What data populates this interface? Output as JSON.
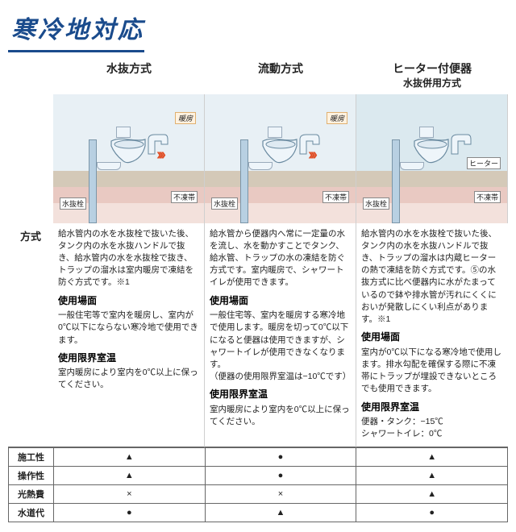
{
  "title": "寒冷地対応",
  "title_color": "#1a4b8c",
  "columns": [
    {
      "heading": "水抜方式",
      "sub": ""
    },
    {
      "heading": "流動方式",
      "sub": ""
    },
    {
      "heading": "ヒーター付便器",
      "sub": "水抜併用方式"
    }
  ],
  "side_label": "方式",
  "illustration": {
    "room_bg": "#e8f0f5",
    "room_bg_alt": "#dbe9ef",
    "floor_bg": "#d4c9b8",
    "ground_bg": "#e9c9c2",
    "soil_bg": "#f3e1dc",
    "pipe_color": "#b8d0e2",
    "bowl_stroke": "#6a8aa0",
    "bowl_fill": "#eef5fa",
    "wave_color": "#e05028",
    "label_water": "水抜栓",
    "label_frost": "不凍帯",
    "label_heat": "暖房",
    "label_heater": "ヒーター",
    "show_waves": [
      true,
      true,
      false
    ],
    "show_heaterbox": [
      false,
      false,
      true
    ],
    "room_variant": [
      0,
      0,
      1
    ]
  },
  "cursor": "",
  "descriptions": [
    {
      "body": "給水管内の水を水抜栓で抜いた後、タンク内の水を水抜ハンドルで抜き、給水管内の水を水抜栓で抜き、トラップの溜水は室内暖房で凍結を防ぐ方式です。※1",
      "scene_title": "使用場面",
      "scene": "一般住宅等で室内を暖房し、室内が0℃以下にならない寒冷地で使用できます。",
      "limit_title": "使用限界室温",
      "limit": "室内暖房により室内を0℃以上に保ってください。"
    },
    {
      "body": "給水管から便器内へ常に一定量の水を流し、水を動かすことでタンク、給水管、トラップの水の凍結を防ぐ方式です。室内暖房で、シャワートイレが使用できます。",
      "scene_title": "使用場面",
      "scene": "一般住宅等、室内を暖房する寒冷地で使用します。暖房を切って0℃以下になると便器は使用できますが、シャワートイレが使用できなくなります。\n（便器の使用限界室温は−10℃です）",
      "limit_title": "使用限界室温",
      "limit": "室内暖房により室内を0℃以上に保ってください。"
    },
    {
      "body": "給水管内の水を水抜栓で抜いた後、タンク内の水を水抜ハンドルで抜き、トラップの溜水は内蔵ヒーターの熱で凍結を防ぐ方式です。⑤の水抜方式に比べ便器内に水がたまっているので鉢や排水管が汚れにくくにおいが発散しにくい利点があります。※1",
      "scene_title": "使用場面",
      "scene": "室内が0℃以下になる寒冷地で使用します。排水勾配を確保する際に不凍帯にトラップが埋設できないところでも使用できます。",
      "limit_title": "使用限界室温",
      "limit": "便器・タンク：−15℃\nシャワートイレ：0℃"
    }
  ],
  "matrix": {
    "rows": [
      "施工性",
      "操作性",
      "光熱費",
      "水道代"
    ],
    "symbols": [
      [
        "▲",
        "●",
        "▲"
      ],
      [
        "▲",
        "●",
        "▲"
      ],
      [
        "×",
        "×",
        "▲"
      ],
      [
        "●",
        "▲",
        "●"
      ]
    ],
    "triangle": "▲",
    "circle": "●",
    "cross": "×"
  }
}
